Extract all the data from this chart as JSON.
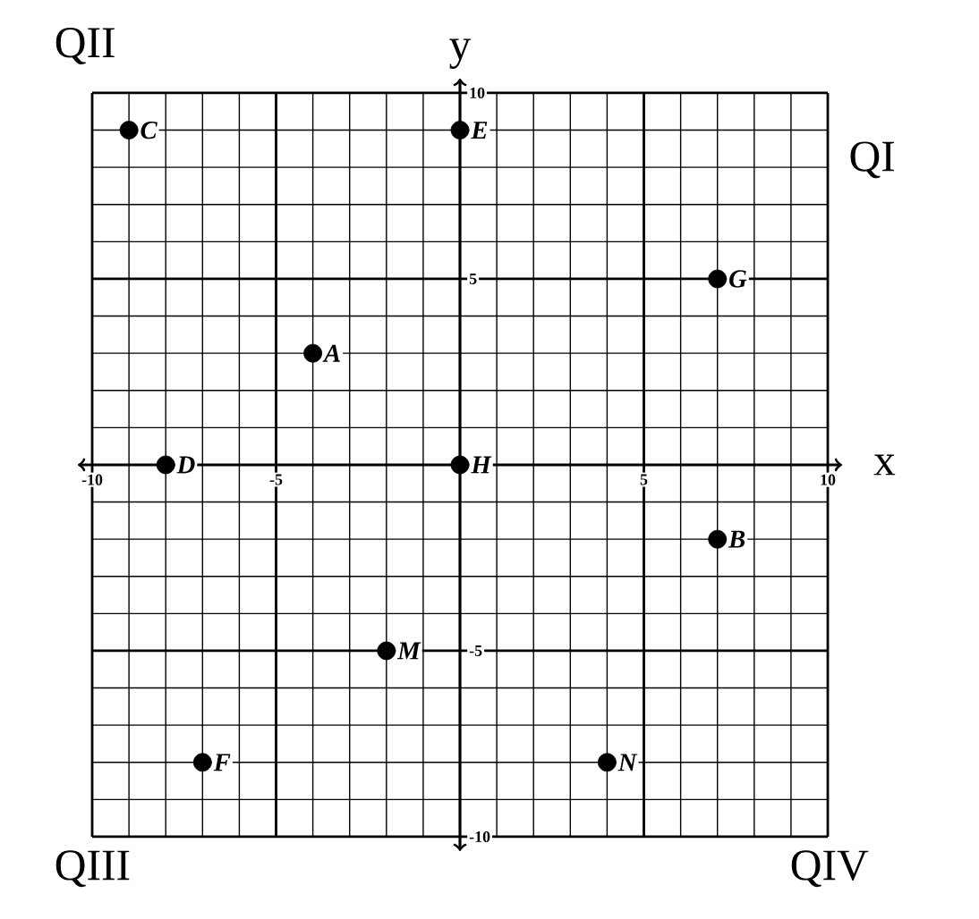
{
  "chart_data": {
    "type": "scatter",
    "xlabel": "x",
    "ylabel": "y",
    "xlim": [
      -10,
      10
    ],
    "ylim": [
      -10,
      10
    ],
    "xticks": [
      -10,
      -5,
      5,
      10
    ],
    "yticks": [
      -10,
      -5,
      5,
      10
    ],
    "grid": true,
    "marker": "circle",
    "annotations": [
      "QII",
      "QI",
      "QIII",
      "QIV"
    ],
    "series": [
      {
        "name": "C",
        "color": "#000000",
        "x": [
          -9
        ],
        "values": [
          9
        ]
      },
      {
        "name": "E",
        "color": "#000000",
        "x": [
          0
        ],
        "values": [
          9
        ]
      },
      {
        "name": "G",
        "color": "#000000",
        "x": [
          7
        ],
        "values": [
          5
        ]
      },
      {
        "name": "A",
        "color": "#000000",
        "x": [
          -4
        ],
        "values": [
          3
        ]
      },
      {
        "name": "D",
        "color": "#000000",
        "x": [
          -8
        ],
        "values": [
          0
        ]
      },
      {
        "name": "H",
        "color": "#000000",
        "x": [
          0
        ],
        "values": [
          0
        ]
      },
      {
        "name": "B",
        "color": "#000000",
        "x": [
          7
        ],
        "values": [
          -2
        ]
      },
      {
        "name": "M",
        "color": "#000000",
        "x": [
          -2
        ],
        "values": [
          -5
        ]
      },
      {
        "name": "F",
        "color": "#000000",
        "x": [
          -7
        ],
        "values": [
          -8
        ]
      },
      {
        "name": "N",
        "color": "#000000",
        "x": [
          4
        ],
        "values": [
          -8
        ]
      }
    ]
  }
}
